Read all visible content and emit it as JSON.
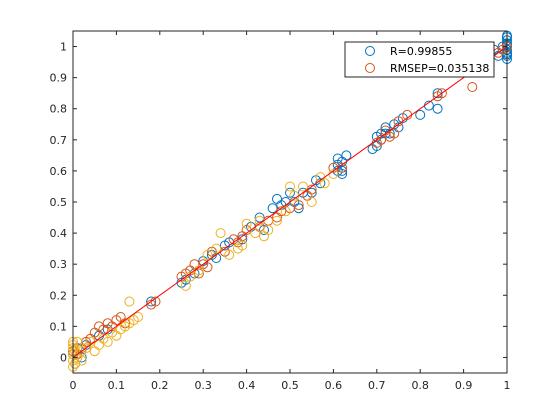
{
  "chart_data": {
    "type": "scatter",
    "title": "",
    "xlabel": "",
    "ylabel": "",
    "xlim": [
      0,
      1
    ],
    "ylim": [
      -0.05,
      1.05
    ],
    "xticks": [
      "0",
      "0.1",
      "0.2",
      "0.3",
      "0.4",
      "0.5",
      "0.6",
      "0.7",
      "0.8",
      "0.9",
      "1"
    ],
    "yticks": [
      "0",
      "0.1",
      "0.2",
      "0.3",
      "0.4",
      "0.5",
      "0.6",
      "0.7",
      "0.8",
      "0.9",
      "1"
    ],
    "grid": false,
    "legend_position": "top-right",
    "fit_line": {
      "x": [
        0,
        1
      ],
      "y": [
        0,
        1
      ],
      "color": "#ff0000"
    },
    "series": [
      {
        "name": "R=0.99855",
        "color": "#0072bd",
        "points": [
          [
            0.0,
            0.01
          ],
          [
            0.005,
            -0.02
          ],
          [
            0.01,
            0.03
          ],
          [
            0.02,
            0.0
          ],
          [
            0.03,
            0.04
          ],
          [
            0.06,
            0.07
          ],
          [
            0.08,
            0.09
          ],
          [
            0.18,
            0.18
          ],
          [
            0.25,
            0.24
          ],
          [
            0.26,
            0.25
          ],
          [
            0.28,
            0.27
          ],
          [
            0.3,
            0.31
          ],
          [
            0.32,
            0.33
          ],
          [
            0.33,
            0.32
          ],
          [
            0.35,
            0.36
          ],
          [
            0.36,
            0.37
          ],
          [
            0.39,
            0.38
          ],
          [
            0.41,
            0.42
          ],
          [
            0.43,
            0.45
          ],
          [
            0.44,
            0.41
          ],
          [
            0.46,
            0.48
          ],
          [
            0.47,
            0.51
          ],
          [
            0.48,
            0.49
          ],
          [
            0.49,
            0.5
          ],
          [
            0.5,
            0.53
          ],
          [
            0.51,
            0.5
          ],
          [
            0.52,
            0.48
          ],
          [
            0.53,
            0.53
          ],
          [
            0.55,
            0.53
          ],
          [
            0.56,
            0.57
          ],
          [
            0.57,
            0.56
          ],
          [
            0.61,
            0.6
          ],
          [
            0.62,
            0.6
          ],
          [
            0.61,
            0.62
          ],
          [
            0.62,
            0.63
          ],
          [
            0.61,
            0.64
          ],
          [
            0.62,
            0.59
          ],
          [
            0.63,
            0.65
          ],
          [
            0.69,
            0.67
          ],
          [
            0.7,
            0.68
          ],
          [
            0.7,
            0.71
          ],
          [
            0.71,
            0.72
          ],
          [
            0.71,
            0.7
          ],
          [
            0.72,
            0.74
          ],
          [
            0.73,
            0.72
          ],
          [
            0.74,
            0.75
          ],
          [
            0.75,
            0.74
          ],
          [
            0.72,
            0.72
          ],
          [
            0.76,
            0.77
          ],
          [
            0.8,
            0.78
          ],
          [
            0.82,
            0.81
          ],
          [
            0.84,
            0.85
          ],
          [
            0.84,
            0.8
          ],
          [
            0.97,
            0.99
          ],
          [
            0.98,
            0.97
          ],
          [
            1.0,
            0.97
          ],
          [
            1.0,
            0.98
          ],
          [
            1.0,
            0.99
          ],
          [
            1.0,
            1.0
          ],
          [
            1.0,
            1.01
          ],
          [
            1.0,
            1.02
          ],
          [
            1.0,
            1.03
          ],
          [
            0.99,
            1.0
          ],
          [
            1.0,
            0.96
          ],
          [
            1.0,
            1.035
          ],
          [
            1.0,
            0.975
          ],
          [
            1.0,
            1.005
          ]
        ]
      },
      {
        "name": "RMSEP=0.035138",
        "color": "#d95319",
        "points": [
          [
            0.0,
            0.02
          ],
          [
            0.01,
            0.01
          ],
          [
            0.02,
            0.03
          ],
          [
            0.03,
            0.05
          ],
          [
            0.04,
            0.06
          ],
          [
            0.05,
            0.08
          ],
          [
            0.06,
            0.1
          ],
          [
            0.07,
            0.09
          ],
          [
            0.08,
            0.11
          ],
          [
            0.09,
            0.1
          ],
          [
            0.1,
            0.12
          ],
          [
            0.11,
            0.13
          ],
          [
            0.12,
            0.11
          ],
          [
            0.18,
            0.17
          ],
          [
            0.19,
            0.18
          ],
          [
            0.25,
            0.26
          ],
          [
            0.26,
            0.27
          ],
          [
            0.27,
            0.28
          ],
          [
            0.28,
            0.3
          ],
          [
            0.29,
            0.27
          ],
          [
            0.3,
            0.3
          ],
          [
            0.31,
            0.29
          ],
          [
            0.32,
            0.34
          ],
          [
            0.35,
            0.34
          ],
          [
            0.37,
            0.38
          ],
          [
            0.38,
            0.37
          ],
          [
            0.39,
            0.39
          ],
          [
            0.4,
            0.41
          ],
          [
            0.43,
            0.42
          ],
          [
            0.45,
            0.44
          ],
          [
            0.47,
            0.45
          ],
          [
            0.48,
            0.47
          ],
          [
            0.5,
            0.48
          ],
          [
            0.52,
            0.49
          ],
          [
            0.54,
            0.52
          ],
          [
            0.55,
            0.54
          ],
          [
            0.6,
            0.61
          ],
          [
            0.62,
            0.61
          ],
          [
            0.7,
            0.69
          ],
          [
            0.71,
            0.7
          ],
          [
            0.72,
            0.73
          ],
          [
            0.73,
            0.71
          ],
          [
            0.74,
            0.72
          ],
          [
            0.75,
            0.76
          ],
          [
            0.77,
            0.78
          ],
          [
            0.84,
            0.84
          ],
          [
            0.85,
            0.85
          ],
          [
            0.92,
            0.87
          ],
          [
            0.99,
            0.99
          ],
          [
            1.0,
            1.0
          ],
          [
            0.98,
            0.98
          ]
        ]
      },
      {
        "name": "",
        "color": "#edb120",
        "points": [
          [
            0.0,
            0.05
          ],
          [
            0.0,
            0.03
          ],
          [
            0.0,
            0.01
          ],
          [
            0.0,
            -0.01
          ],
          [
            0.0,
            -0.03
          ],
          [
            0.0,
            0.04
          ],
          [
            0.005,
            -0.02
          ],
          [
            0.005,
            0.02
          ],
          [
            0.01,
            0.05
          ],
          [
            0.01,
            0.0
          ],
          [
            0.02,
            0.02
          ],
          [
            0.02,
            -0.01
          ],
          [
            0.03,
            0.03
          ],
          [
            0.04,
            0.05
          ],
          [
            0.05,
            0.02
          ],
          [
            0.06,
            0.04
          ],
          [
            0.07,
            0.06
          ],
          [
            0.08,
            0.05
          ],
          [
            0.09,
            0.08
          ],
          [
            0.1,
            0.07
          ],
          [
            0.11,
            0.09
          ],
          [
            0.12,
            0.1
          ],
          [
            0.13,
            0.11
          ],
          [
            0.14,
            0.12
          ],
          [
            0.13,
            0.18
          ],
          [
            0.15,
            0.13
          ],
          [
            0.26,
            0.23
          ],
          [
            0.27,
            0.26
          ],
          [
            0.29,
            0.28
          ],
          [
            0.31,
            0.33
          ],
          [
            0.33,
            0.35
          ],
          [
            0.34,
            0.4
          ],
          [
            0.36,
            0.33
          ],
          [
            0.38,
            0.35
          ],
          [
            0.39,
            0.36
          ],
          [
            0.4,
            0.43
          ],
          [
            0.42,
            0.4
          ],
          [
            0.43,
            0.44
          ],
          [
            0.44,
            0.39
          ],
          [
            0.45,
            0.41
          ],
          [
            0.47,
            0.44
          ],
          [
            0.49,
            0.47
          ],
          [
            0.5,
            0.55
          ],
          [
            0.51,
            0.52
          ],
          [
            0.53,
            0.55
          ],
          [
            0.55,
            0.5
          ],
          [
            0.57,
            0.58
          ],
          [
            0.58,
            0.56
          ],
          [
            0.6,
            0.59
          ]
        ]
      }
    ]
  }
}
